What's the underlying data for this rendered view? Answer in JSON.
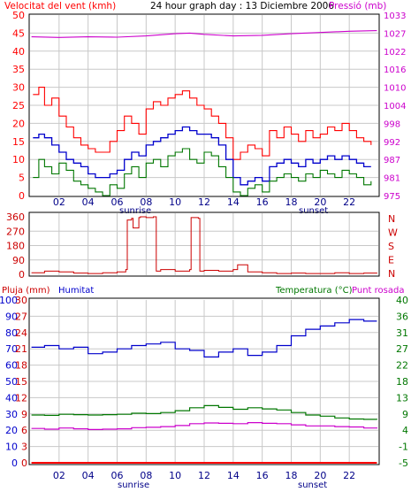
{
  "colors": {
    "red": "#ff0000",
    "darkred": "#cc0000",
    "blue": "#0000cc",
    "green": "#007700",
    "magenta": "#cc00cc",
    "grid": "#c8c8c8",
    "border": "#000000"
  },
  "panel1": {
    "title": "24 hour graph day : 13 Diciembre 2006",
    "left_label": "Velocitat del vent (kmh)",
    "right_label": "Pressió (mb)",
    "sunrise_label": "sunrise",
    "sunset_label": "sunset"
  },
  "panel2": {
    "dir_labels": [
      "N",
      "W",
      "S",
      "E",
      "N"
    ]
  },
  "panel3": {
    "label_rain": "Pluja (mm)",
    "label_hum": "Humitat",
    "label_temp": "Temperatura (°C)",
    "label_dew": "Punt rosada",
    "sunrise_label": "sunrise",
    "sunset_label": "sunset"
  },
  "chart_data": [
    {
      "type": "line",
      "title": "24 hour graph day : 13 Diciembre 2006",
      "xlabel": "",
      "x_ticks": [
        "02",
        "04",
        "06",
        "08",
        "10",
        "12",
        "14",
        "16",
        "18",
        "20",
        "22"
      ],
      "y_left": {
        "label": "Velocitat del vent (kmh)",
        "ticks": [
          0,
          5,
          10,
          15,
          20,
          25,
          30,
          35,
          40,
          45,
          50
        ],
        "ylim": [
          0,
          50
        ]
      },
      "y_right": {
        "label": "Pressió (mb)",
        "ticks": [
          975,
          981,
          987,
          992,
          998,
          1004,
          1010,
          1016,
          1022,
          1027,
          1033
        ],
        "ylim": [
          975,
          1033
        ]
      },
      "grid": true,
      "series": [
        {
          "name": "Pressió (mb)",
          "axis": "right",
          "color": "#cc00cc",
          "x": [
            0.1,
            2,
            4,
            6,
            8,
            10,
            11,
            12,
            14,
            16,
            18,
            20,
            22,
            23.9
          ],
          "values": [
            1026,
            1025.8,
            1026,
            1025.9,
            1026.3,
            1027,
            1027.2,
            1026.8,
            1026.3,
            1026.5,
            1027,
            1027.4,
            1027.8,
            1028
          ]
        },
        {
          "name": "Velocitat del vent (kmh) ratxa",
          "axis": "left",
          "color": "#ff0000",
          "x": [
            0.2,
            0.6,
            1,
            1.5,
            2,
            2.5,
            3,
            3.5,
            4,
            4.5,
            5,
            5.5,
            6,
            6.5,
            7,
            7.5,
            8,
            8.5,
            9,
            9.5,
            10,
            10.5,
            11,
            11.5,
            12,
            12.5,
            13,
            13.5,
            14,
            14.5,
            15,
            15.5,
            16,
            16.5,
            17,
            17.5,
            18,
            18.5,
            19,
            19.5,
            20,
            20.5,
            21,
            21.5,
            22,
            22.5,
            23,
            23.5
          ],
          "values": [
            28,
            30,
            25,
            27,
            22,
            19,
            16,
            14,
            13,
            12,
            12,
            15,
            18,
            22,
            20,
            17,
            24,
            26,
            25,
            27,
            28,
            29,
            27,
            25,
            24,
            22,
            20,
            16,
            10,
            12,
            14,
            13,
            11,
            18,
            16,
            19,
            17,
            15,
            18,
            16,
            17,
            19,
            18,
            20,
            18,
            16,
            15,
            14
          ]
        },
        {
          "name": "Velocitat del vent (kmh) mitjana",
          "axis": "left",
          "color": "#0000cc",
          "x": [
            0.2,
            0.6,
            1,
            1.5,
            2,
            2.5,
            3,
            3.5,
            4,
            4.5,
            5,
            5.5,
            6,
            6.5,
            7,
            7.5,
            8,
            8.5,
            9,
            9.5,
            10,
            10.5,
            11,
            11.5,
            12,
            12.5,
            13,
            13.5,
            14,
            14.5,
            15,
            15.5,
            16,
            16.5,
            17,
            17.5,
            18,
            18.5,
            19,
            19.5,
            20,
            20.5,
            21,
            21.5,
            22,
            22.5,
            23,
            23.5
          ],
          "values": [
            16,
            17,
            16,
            14,
            12,
            10,
            9,
            8,
            6,
            5,
            5,
            6,
            7,
            10,
            12,
            11,
            14,
            15,
            16,
            17,
            18,
            19,
            18,
            17,
            17,
            16,
            14,
            10,
            5,
            3,
            4,
            5,
            4,
            8,
            9,
            10,
            9,
            8,
            10,
            9,
            10,
            11,
            10,
            11,
            10,
            9,
            8,
            8
          ]
        },
        {
          "name": "Velocitat del vent (kmh) mínim",
          "axis": "left",
          "color": "#007700",
          "x": [
            0.2,
            0.6,
            1,
            1.5,
            2,
            2.5,
            3,
            3.5,
            4,
            4.5,
            5,
            5.5,
            6,
            6.5,
            7,
            7.5,
            8,
            8.5,
            9,
            9.5,
            10,
            10.5,
            11,
            11.5,
            12,
            12.5,
            13,
            13.5,
            14,
            14.5,
            15,
            15.5,
            16,
            16.5,
            17,
            17.5,
            18,
            18.5,
            19,
            19.5,
            20,
            20.5,
            21,
            21.5,
            22,
            22.5,
            23,
            23.5
          ],
          "values": [
            5,
            10,
            8,
            6,
            9,
            7,
            4,
            3,
            2,
            1,
            0,
            3,
            2,
            6,
            8,
            5,
            9,
            10,
            8,
            11,
            12,
            13,
            10,
            9,
            12,
            11,
            8,
            5,
            1,
            0,
            2,
            3,
            1,
            4,
            5,
            6,
            5,
            4,
            6,
            5,
            7,
            6,
            5,
            7,
            6,
            5,
            3,
            4
          ]
        }
      ]
    },
    {
      "type": "line",
      "title": "",
      "x_ticks": [
        "02",
        "04",
        "06",
        "08",
        "10",
        "12",
        "14",
        "16",
        "18",
        "20",
        "22"
      ],
      "y_left": {
        "ticks": [
          0,
          90,
          180,
          270,
          360
        ],
        "ylim": [
          0,
          360
        ]
      },
      "y_right": {
        "ticks": [
          "N",
          "E",
          "S",
          "W",
          "N"
        ]
      },
      "grid": true,
      "series": [
        {
          "name": "Direcció del vent",
          "color": "#cc0000",
          "x": [
            0.1,
            1,
            2,
            3,
            4,
            5,
            6,
            6.6,
            6.7,
            7.0,
            7.1,
            7.5,
            7.6,
            8,
            8.5,
            8.7,
            9,
            10,
            11,
            11.1,
            11.6,
            11.7,
            12,
            13,
            14,
            14.3,
            15,
            16,
            17,
            18,
            19,
            20,
            21,
            22,
            23,
            23.9
          ],
          "values": [
            10,
            20,
            15,
            8,
            5,
            10,
            15,
            30,
            340,
            350,
            290,
            355,
            360,
            355,
            360,
            20,
            30,
            20,
            30,
            355,
            350,
            20,
            25,
            20,
            30,
            60,
            15,
            10,
            5,
            8,
            5,
            5,
            10,
            5,
            8,
            5
          ]
        }
      ]
    },
    {
      "type": "line",
      "title": "",
      "x_ticks": [
        "02",
        "04",
        "06",
        "08",
        "10",
        "12",
        "14",
        "16",
        "18",
        "20",
        "22"
      ],
      "y_left_outer": {
        "label": "Humitat",
        "ticks": [
          0,
          10,
          20,
          30,
          40,
          50,
          60,
          70,
          80,
          90,
          100
        ],
        "ylim": [
          0,
          100
        ]
      },
      "y_left_inner": {
        "label": "Pluja (mm)",
        "ticks": [
          0,
          3,
          6,
          9,
          12,
          15,
          18,
          21,
          24,
          27,
          30
        ],
        "ylim": [
          0,
          30
        ]
      },
      "y_right": {
        "label": "Temperatura (°C)",
        "ticks": [
          -5,
          -1,
          4,
          9,
          13,
          18,
          22,
          27,
          31,
          36,
          40
        ],
        "ylim": [
          -5,
          40
        ]
      },
      "grid": true,
      "series": [
        {
          "name": "Humitat",
          "axis": "left_outer",
          "color": "#0000cc",
          "x": [
            0.1,
            1,
            2,
            3,
            4,
            5,
            6,
            7,
            8,
            9,
            10,
            11,
            12,
            13,
            14,
            15,
            16,
            17,
            18,
            19,
            20,
            21,
            22,
            23,
            23.9
          ],
          "values": [
            71,
            72,
            70,
            71,
            67,
            68,
            70,
            72,
            73,
            74,
            70,
            69,
            65,
            68,
            70,
            66,
            68,
            72,
            78,
            82,
            84,
            86,
            88,
            87,
            87
          ]
        },
        {
          "name": "Temperatura (°C)",
          "axis": "right",
          "color": "#007700",
          "x": [
            0.1,
            1,
            2,
            3,
            4,
            5,
            6,
            7,
            8,
            9,
            10,
            11,
            12,
            13,
            14,
            15,
            16,
            17,
            18,
            19,
            20,
            21,
            22,
            23,
            23.9
          ],
          "values": [
            8.2,
            8.1,
            8.4,
            8.3,
            8.2,
            8.3,
            8.4,
            8.7,
            8.6,
            8.9,
            9.4,
            10.2,
            10.8,
            10.3,
            9.8,
            10.2,
            9.9,
            9.6,
            8.9,
            8.2,
            7.9,
            7.4,
            7.1,
            7.0,
            6.9
          ]
        },
        {
          "name": "Punt rosada",
          "axis": "right",
          "color": "#cc00cc",
          "x": [
            0.1,
            1,
            2,
            3,
            4,
            5,
            6,
            7,
            8,
            9,
            10,
            11,
            12,
            13,
            14,
            15,
            16,
            17,
            18,
            19,
            20,
            21,
            22,
            23,
            23.9
          ],
          "values": [
            4.5,
            4.3,
            4.6,
            4.4,
            4.2,
            4.3,
            4.4,
            4.7,
            4.8,
            5.0,
            5.3,
            5.8,
            6.0,
            5.9,
            5.8,
            6.1,
            5.9,
            5.8,
            5.5,
            5.2,
            5.2,
            5.0,
            4.9,
            4.6,
            4.5
          ]
        },
        {
          "name": "Pluja (mm)",
          "axis": "left_inner",
          "color": "#ff0000",
          "x": [
            0.1,
            23.9
          ],
          "values": [
            0,
            0
          ]
        }
      ]
    }
  ]
}
